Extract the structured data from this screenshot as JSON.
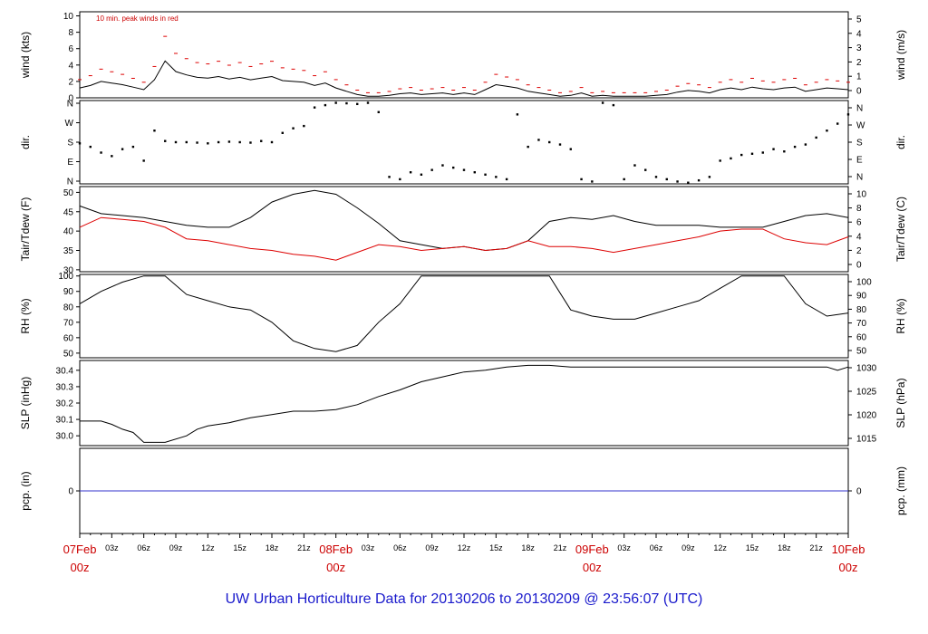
{
  "footer": "UW Urban Horticulture Data for 20130206  to  20130209 @ 23:56:07  (UTC)",
  "colors": {
    "trace": "#000000",
    "alt": "#dd0000",
    "pcp": "#3333cc",
    "label_red": "#cc0000",
    "footer": "#1a1acc"
  },
  "x_hour_labels": [
    "03z",
    "06z",
    "09z",
    "12z",
    "15z",
    "18z",
    "21z"
  ],
  "x_day_labels": [
    {
      "day": "07Feb",
      "hour": "00z"
    },
    {
      "day": "08Feb",
      "hour": "00z"
    },
    {
      "day": "09Feb",
      "hour": "00z"
    },
    {
      "day": "10Feb",
      "hour": "00z"
    }
  ],
  "chart_data": [
    {
      "type": "line",
      "panel": "wind",
      "annotation": "10 min. peak winds in red",
      "ylabel_left": "wind (kts)",
      "ylabel_right": "wind (m/s)",
      "ylim": [
        0,
        10.5
      ],
      "left_ticks": [
        0,
        2,
        4,
        6,
        8,
        10
      ],
      "right_ticks": [
        "0",
        "1",
        "2",
        "3",
        "4",
        "5"
      ],
      "series": [
        {
          "x": [
            0,
            1,
            2,
            3,
            4,
            5,
            6,
            7,
            8,
            9,
            10,
            11,
            12,
            13,
            14,
            15,
            16,
            17,
            18,
            19,
            20,
            21,
            22,
            23,
            24,
            25,
            26,
            27,
            28,
            29,
            30,
            31,
            32,
            33,
            34,
            35,
            36,
            37,
            38,
            39,
            40,
            41,
            42,
            43,
            44,
            45,
            46,
            47,
            48,
            49,
            50,
            51,
            52,
            53,
            54,
            55,
            56,
            57,
            58,
            59,
            60,
            61,
            62,
            63,
            64,
            65,
            66,
            67,
            68,
            69,
            70,
            71,
            72
          ],
          "y": [
            1.2,
            1.5,
            2.0,
            1.8,
            1.6,
            1.3,
            1.0,
            2.2,
            4.5,
            3.2,
            2.8,
            2.5,
            2.4,
            2.6,
            2.3,
            2.5,
            2.2,
            2.4,
            2.6,
            2.1,
            2.0,
            1.9,
            1.5,
            1.8,
            1.2,
            0.8,
            0.4,
            0.2,
            0.2,
            0.3,
            0.5,
            0.6,
            0.4,
            0.5,
            0.6,
            0.4,
            0.6,
            0.4,
            1.0,
            1.6,
            1.4,
            1.2,
            0.8,
            0.6,
            0.4,
            0.2,
            0.3,
            0.6,
            0.2,
            0.3,
            0.2,
            0.2,
            0.2,
            0.2,
            0.3,
            0.4,
            0.7,
            0.9,
            0.8,
            0.6,
            1.0,
            1.2,
            1.0,
            1.3,
            1.1,
            1.0,
            1.2,
            1.3,
            0.8,
            1.0,
            1.2,
            1.1,
            1.0
          ]
        }
      ]
    },
    {
      "type": "scatter",
      "panel": "dir",
      "ylabel_left": "dir.",
      "ylabel_right": "dir.",
      "ylim": [
        0,
        360
      ],
      "left_ticks": [
        "N",
        "E",
        "S",
        "W",
        "N"
      ],
      "right_ticks": [
        "N",
        "E",
        "S",
        "W",
        "N"
      ],
      "series": [
        {
          "x": [
            0,
            1,
            2,
            3,
            4,
            5,
            6,
            7,
            8,
            9,
            10,
            11,
            12,
            13,
            14,
            15,
            16,
            17,
            18,
            19,
            20,
            21,
            22,
            23,
            24,
            25,
            26,
            27,
            28,
            29,
            30,
            31,
            32,
            33,
            34,
            35,
            36,
            37,
            38,
            39,
            40,
            41,
            42,
            43,
            44,
            45,
            46,
            47,
            48,
            49,
            50,
            51,
            52,
            53,
            54,
            55,
            56,
            57,
            58,
            59,
            60,
            61,
            62,
            63,
            64,
            65,
            66,
            67,
            68,
            69,
            70,
            71,
            72
          ],
          "y": [
            175,
            160,
            135,
            120,
            150,
            160,
            100,
            230,
            185,
            180,
            180,
            178,
            175,
            180,
            182,
            180,
            178,
            185,
            180,
            220,
            240,
            250,
            330,
            340,
            350,
            348,
            345,
            350,
            310,
            30,
            20,
            50,
            40,
            60,
            80,
            70,
            60,
            50,
            40,
            30,
            20,
            300,
            160,
            190,
            180,
            170,
            150,
            20,
            10,
            350,
            340,
            20,
            80,
            60,
            30,
            20,
            10,
            5,
            15,
            30,
            100,
            110,
            125,
            130,
            135,
            150,
            140,
            160,
            170,
            200,
            230,
            260,
            300
          ]
        }
      ]
    },
    {
      "type": "line",
      "panel": "temp",
      "ylabel_left": "Tair/Tdew (F)",
      "ylabel_right": "Tair/Tdew (C)",
      "ylim": [
        29.5,
        51.5
      ],
      "left_ticks": [
        30,
        35,
        40,
        45,
        50
      ],
      "right_ticks": [
        "0",
        "2",
        "4",
        "6",
        "8",
        "10"
      ],
      "series": [
        {
          "x": [
            0,
            2,
            4,
            6,
            8,
            10,
            12,
            14,
            16,
            18,
            20,
            22,
            24,
            26,
            28,
            30,
            32,
            34,
            36,
            38,
            40,
            42,
            44,
            46,
            48,
            50,
            52,
            54,
            56,
            58,
            60,
            62,
            64,
            66,
            68,
            70,
            72
          ],
          "y": [
            46.5,
            44.5,
            44.0,
            43.5,
            42.5,
            41.5,
            41.0,
            41.0,
            43.5,
            47.5,
            49.5,
            50.5,
            49.5,
            46.0,
            42.0,
            37.5,
            36.5,
            35.5,
            36.0,
            35.0,
            35.5,
            37.5,
            42.5,
            43.5,
            43.0,
            44.0,
            42.5,
            41.5,
            41.5,
            41.5,
            41.0,
            41.0,
            41.0,
            42.5,
            44.0,
            44.5,
            43.5
          ]
        },
        {
          "x": [
            0,
            2,
            4,
            6,
            8,
            10,
            12,
            14,
            16,
            18,
            20,
            22,
            24,
            26,
            28,
            30,
            32,
            34,
            36,
            38,
            40,
            42,
            44,
            46,
            48,
            50,
            52,
            54,
            56,
            58,
            60,
            62,
            64,
            66,
            68,
            70,
            72
          ],
          "y": [
            41.0,
            43.5,
            43.0,
            42.5,
            41.0,
            38.0,
            37.5,
            36.5,
            35.5,
            35.0,
            34.0,
            33.5,
            32.5,
            34.5,
            36.5,
            36.0,
            35.0,
            35.5,
            36.0,
            35.0,
            35.5,
            37.5,
            36.0,
            36.0,
            35.5,
            34.5,
            35.5,
            36.5,
            37.5,
            38.5,
            40.0,
            40.5,
            40.5,
            38.0,
            37.0,
            36.5,
            38.5
          ]
        }
      ]
    },
    {
      "type": "line",
      "panel": "rh",
      "ylabel_left": "RH (%)",
      "ylabel_right": "RH (%)",
      "ylim": [
        47,
        101
      ],
      "left_ticks": [
        50,
        60,
        70,
        80,
        90,
        100
      ],
      "right_ticks": [
        "50",
        "60",
        "70",
        "80",
        "90",
        "100"
      ],
      "series": [
        {
          "x": [
            0,
            2,
            4,
            6,
            8,
            10,
            12,
            14,
            16,
            18,
            20,
            22,
            24,
            26,
            28,
            30,
            32,
            34,
            36,
            38,
            40,
            42,
            44,
            46,
            48,
            50,
            52,
            54,
            56,
            58,
            60,
            62,
            64,
            66,
            68,
            70,
            72
          ],
          "y": [
            82,
            90,
            96,
            100,
            100,
            88,
            84,
            80,
            78,
            70,
            58,
            53,
            51,
            55,
            70,
            82,
            100,
            100,
            100,
            100,
            100,
            100,
            100,
            78,
            74,
            72,
            72,
            76,
            80,
            84,
            92,
            100,
            100,
            100,
            82,
            74,
            76
          ]
        }
      ]
    },
    {
      "type": "line",
      "panel": "slp",
      "ylabel_left": "SLP (inHg)",
      "ylabel_right": "SLP (hPa)",
      "ylim": [
        29.94,
        30.46
      ],
      "left_ticks": [
        30.0,
        30.1,
        30.2,
        30.3,
        30.4
      ],
      "right_ticks": [
        "1015",
        "1020",
        "1025",
        "1030"
      ],
      "series": [
        {
          "x": [
            0,
            2,
            3,
            4,
            5,
            6,
            8,
            10,
            11,
            12,
            14,
            16,
            18,
            20,
            22,
            24,
            26,
            28,
            30,
            32,
            34,
            36,
            38,
            40,
            42,
            44,
            46,
            48,
            50,
            52,
            54,
            56,
            58,
            60,
            62,
            64,
            66,
            68,
            70,
            71,
            72
          ],
          "y": [
            30.09,
            30.09,
            30.07,
            30.04,
            30.02,
            29.96,
            29.96,
            30.0,
            30.04,
            30.06,
            30.08,
            30.11,
            30.13,
            30.15,
            30.15,
            30.16,
            30.19,
            30.24,
            30.28,
            30.33,
            30.36,
            30.39,
            30.4,
            30.42,
            30.43,
            30.43,
            30.42,
            30.42,
            30.42,
            30.42,
            30.42,
            30.42,
            30.42,
            30.42,
            30.42,
            30.42,
            30.42,
            30.42,
            30.42,
            30.4,
            30.42
          ]
        }
      ]
    },
    {
      "type": "line",
      "panel": "pcp",
      "ylabel_left": "pcp. (in)",
      "ylabel_right": "pcp. (mm)",
      "ylim": [
        -1,
        1
      ],
      "left_ticks": [
        "0"
      ],
      "right_ticks": [
        "0"
      ],
      "series": [
        {
          "x": [
            0,
            72
          ],
          "y": [
            0,
            0
          ]
        }
      ]
    }
  ]
}
